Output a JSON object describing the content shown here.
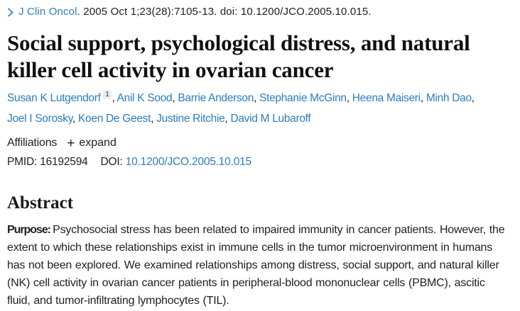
{
  "citation": {
    "journal": "J Clin Oncol",
    "rest": ". 2005 Oct 1;23(28):7105-13. doi: 10.1200/JCO.2005.10.015."
  },
  "title": "Social support, psychological distress, and natural killer cell activity in ovarian cancer",
  "authors": [
    {
      "name": "Susan K Lutgendorf",
      "sup": "1"
    },
    {
      "name": "Anil K Sood"
    },
    {
      "name": "Barrie Anderson"
    },
    {
      "name": "Stephanie McGinn"
    },
    {
      "name": "Heena Maiseri"
    },
    {
      "name": "Minh Dao"
    },
    {
      "name": "Joel I Sorosky"
    },
    {
      "name": "Koen De Geest"
    },
    {
      "name": "Justine Ritchie"
    },
    {
      "name": "David M Lubaroff"
    }
  ],
  "affiliations": {
    "label": "Affiliations",
    "expand_label": "expand"
  },
  "ids": {
    "pmid_label": "PMID:",
    "pmid": "16192594",
    "doi_label": "DOI:",
    "doi": "10.1200/JCO.2005.10.015"
  },
  "abstract": {
    "heading": "Abstract",
    "purpose_label": "Purpose:",
    "purpose_text": "Psychosocial stress has been related to impaired immunity in cancer patients. However, the extent to which these relationships exist in immune cells in the tumor microenvironment in humans has not been explored. We examined relationships among distress, social support, and natural killer (NK) cell activity in ovarian cancer patients in peripheral-blood mononuclear cells (PBMC), ascitic fluid, and tumor-infiltrating lymphocytes (TIL)."
  },
  "colors": {
    "link": "#2d7dbe",
    "text": "#212121",
    "title": "#101010",
    "badge_bg": "#ececec"
  }
}
